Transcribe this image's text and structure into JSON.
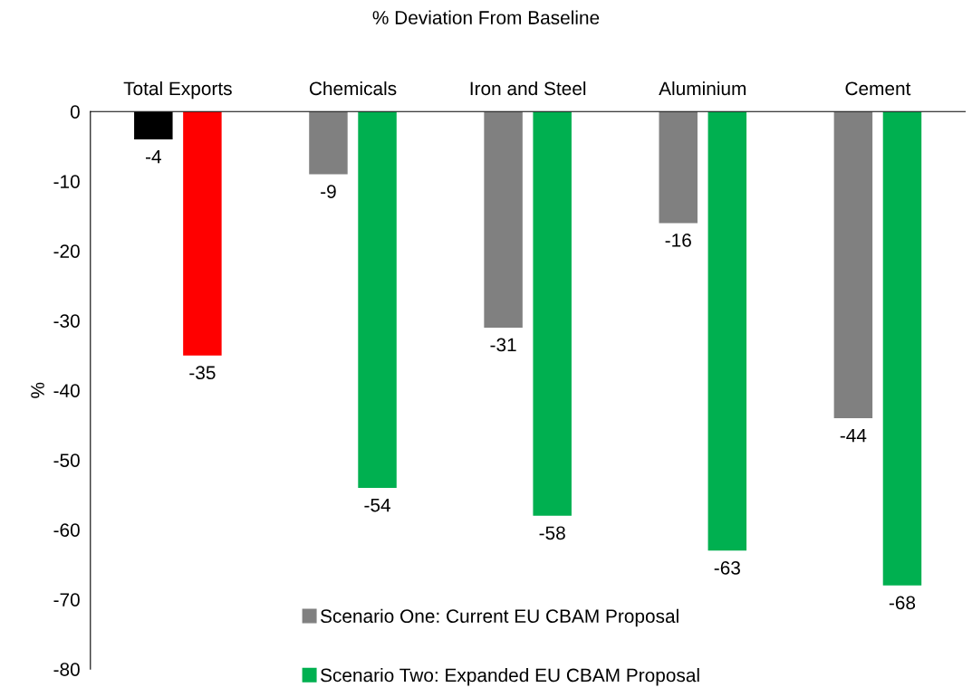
{
  "chart_data": {
    "type": "bar",
    "title": "% Deviation From Baseline",
    "ylabel": "%",
    "categories": [
      "Total Exports",
      "Chemicals",
      "Iron and Steel",
      "Aluminium",
      "Cement"
    ],
    "series": [
      {
        "name": "Scenario One: Current EU CBAM Proposal",
        "color": "#808080",
        "colors": [
          "#000000",
          "#808080",
          "#808080",
          "#808080",
          "#808080"
        ],
        "values": [
          -4,
          -9,
          -31,
          -16,
          -44
        ]
      },
      {
        "name": "Scenario Two: Expanded EU CBAM Proposal",
        "color": "#00b050",
        "colors": [
          "#ff0000",
          "#00b050",
          "#00b050",
          "#00b050",
          "#00b050"
        ],
        "values": [
          -35,
          -54,
          -58,
          -63,
          -68
        ]
      }
    ],
    "ylim": [
      -80,
      0
    ],
    "yticks": [
      -80,
      -70,
      -60,
      -50,
      -40,
      -30,
      -20,
      -10,
      0
    ],
    "data_labels": true,
    "grid": false,
    "legend": "bottom"
  }
}
